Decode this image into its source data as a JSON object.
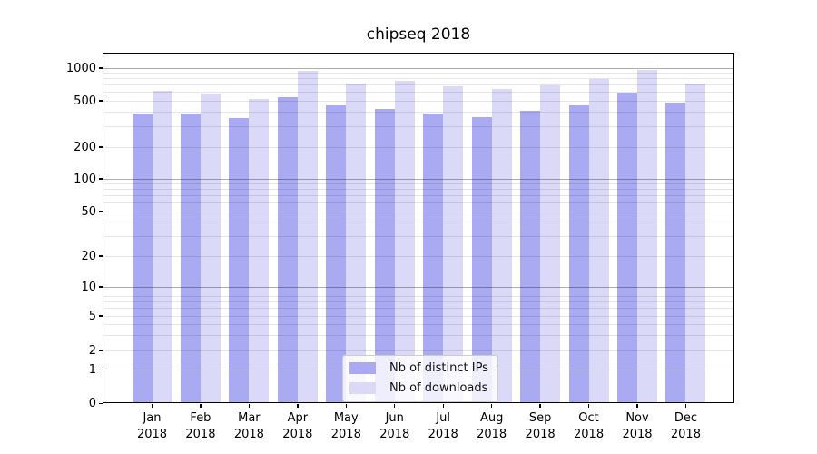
{
  "title": "chipseq 2018",
  "x_axis": {
    "months": [
      "Jan",
      "Feb",
      "Mar",
      "Apr",
      "May",
      "Jun",
      "Jul",
      "Aug",
      "Sep",
      "Oct",
      "Nov",
      "Dec"
    ],
    "year_label": "2018"
  },
  "y_axis": {
    "tick_values": [
      0,
      1,
      2,
      5,
      10,
      20,
      50,
      100,
      200,
      500,
      1000
    ],
    "major_grid_values": [
      1,
      10,
      100,
      1000
    ],
    "minor_grid_values": [
      2,
      3,
      4,
      5,
      6,
      7,
      8,
      9,
      20,
      30,
      40,
      50,
      60,
      70,
      80,
      90,
      200,
      300,
      400,
      500,
      600,
      700,
      800,
      900
    ]
  },
  "legend": {
    "items": [
      {
        "label": "Nb of distinct IPs",
        "series_key": "ips"
      },
      {
        "label": "Nb of downloads",
        "series_key": "downloads"
      }
    ]
  },
  "colors": {
    "ips": "#aaaaf2",
    "downloads": "#dadaf8",
    "grid_major": "rgba(0,0,0,0.32)",
    "grid_minor": "rgba(0,0,0,0.10)",
    "spine": "#000000"
  },
  "chart_data": {
    "type": "bar",
    "title": "chipseq 2018",
    "categories": [
      "Jan 2018",
      "Feb 2018",
      "Mar 2018",
      "Apr 2018",
      "May 2018",
      "Jun 2018",
      "Jul 2018",
      "Aug 2018",
      "Sep 2018",
      "Oct 2018",
      "Nov 2018",
      "Dec 2018"
    ],
    "series": [
      {
        "name": "Nb of distinct IPs",
        "values": [
          389,
          387,
          354,
          537,
          461,
          428,
          389,
          359,
          414,
          455,
          593,
          479
        ]
      },
      {
        "name": "Nb of downloads",
        "values": [
          616,
          586,
          516,
          940,
          716,
          768,
          677,
          648,
          698,
          787,
          969,
          716
        ]
      }
    ],
    "xlabel": "",
    "ylabel": "",
    "yscale": "symlog-like (linear 0-1, logarithmic above)",
    "y_ticks": [
      0,
      1,
      2,
      5,
      10,
      20,
      50,
      100,
      200,
      500,
      1000
    ],
    "ylim": [
      0,
      1200
    ],
    "grid": true,
    "legend_position": "lower center, inside plot"
  }
}
